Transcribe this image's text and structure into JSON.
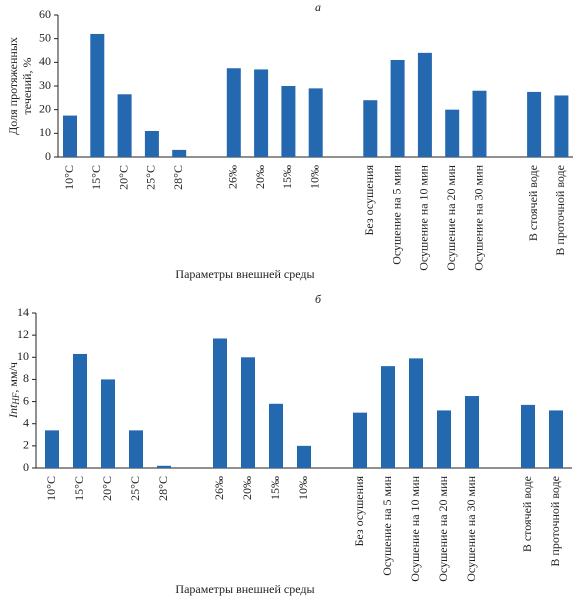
{
  "chart_data": [
    {
      "type": "bar",
      "title": "а",
      "ylabel": [
        "Доля протяженных",
        "течений, %"
      ],
      "xlabel": "Параметры внешней среды",
      "categories": [
        "10°C",
        "15°C",
        "20°C",
        "25°C",
        "28°C",
        null,
        "26‰",
        "20‰",
        "15‰",
        "10‰",
        null,
        "Без осушения",
        "Осушение на 5 мин",
        "Осушение на 10 мин",
        "Осушение на 20 мин",
        "Осушение на 30 мин",
        null,
        "В стоячей воде",
        "В проточной воде"
      ],
      "values": [
        17.5,
        52,
        26.5,
        11,
        3,
        null,
        37.5,
        37,
        30,
        29,
        null,
        24,
        41,
        44,
        20,
        28,
        null,
        27.5,
        26
      ],
      "color": "#2468b0",
      "ylim": [
        0,
        60
      ],
      "yticks": [
        0,
        10,
        20,
        30,
        40,
        50,
        60
      ]
    },
    {
      "type": "bar",
      "title": "б",
      "ylabel": {
        "main": "Int",
        "sub": "HF",
        "rest": ", мм/ч"
      },
      "xlabel": "Параметры внешней среды",
      "categories": [
        "10°C",
        "15°C",
        "20°C",
        "25°C",
        "28°C",
        null,
        "26‰",
        "20‰",
        "15‰",
        "10‰",
        null,
        "Без осушения",
        "Осушение на 5 мин",
        "Осушение на 10 мин",
        "Осушение на 20 мин",
        "Осушение на 30 мин",
        null,
        "В стоячей воде",
        "В проточной воде"
      ],
      "values": [
        3.4,
        10.3,
        8,
        3.4,
        0.2,
        null,
        11.7,
        10,
        5.8,
        2,
        null,
        5,
        9.2,
        9.9,
        5.2,
        6.5,
        null,
        5.7,
        5.2
      ],
      "color": "#2468b0",
      "ylim": [
        0,
        14
      ],
      "yticks": [
        0,
        2,
        4,
        6,
        8,
        10,
        12,
        14
      ]
    }
  ]
}
